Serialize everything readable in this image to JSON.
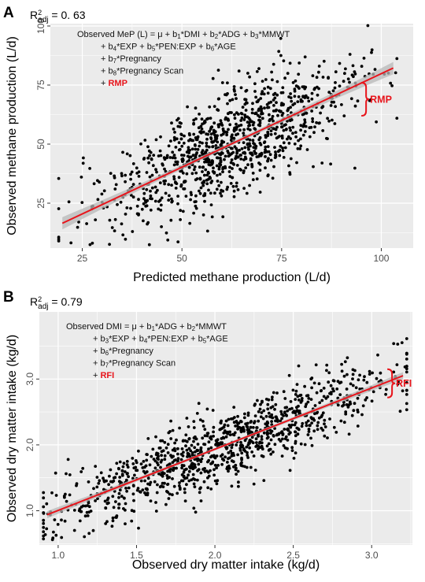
{
  "chart_data": [
    {
      "panel_id": "A",
      "type": "scatter",
      "xlabel": "Predicted methane production (L/d)",
      "ylabel": "Observed methane production (L/d)",
      "xlim": [
        17,
        108
      ],
      "ylim": [
        6,
        101
      ],
      "xticks": [
        25,
        50,
        75,
        100
      ],
      "yticks": [
        25,
        50,
        75,
        100
      ],
      "r2_base": "R",
      "r2_sub": "adj",
      "r2_value": " = 0. 63",
      "equation_lines": [
        [
          {
            "t": "Observed MeP (L) = μ + b"
          },
          {
            "t": "1",
            "sub": true
          },
          {
            "t": "*DMI + b"
          },
          {
            "t": "2",
            "sub": true
          },
          {
            "t": "*ADG + b"
          },
          {
            "t": "3",
            "sub": true
          },
          {
            "t": "*MMWT"
          }
        ],
        [
          {
            "t": "+ b"
          },
          {
            "t": "4",
            "sub": true
          },
          {
            "t": "*EXP + b"
          },
          {
            "t": "5",
            "sub": true
          },
          {
            "t": "*PEN:EXP + b"
          },
          {
            "t": "6",
            "sub": true
          },
          {
            "t": "*AGE"
          }
        ],
        [
          {
            "t": "+ b"
          },
          {
            "t": "7",
            "sub": true
          },
          {
            "t": "*Pregnancy"
          }
        ],
        [
          {
            "t": "+ b"
          },
          {
            "t": "8",
            "sub": true
          },
          {
            "t": "*Pregnancy Scan"
          }
        ],
        [
          {
            "t": "+ "
          },
          {
            "t": "RMP",
            "red": true
          }
        ]
      ],
      "residual_label": "RMP",
      "brace_x": 95,
      "brace_y": [
        62,
        76
      ],
      "fit_line": {
        "x": [
          20,
          103
        ],
        "y": [
          16.5,
          82.2
        ]
      },
      "ci_halfwidth": {
        "ends": 2.6,
        "center": 0.8
      },
      "n_points": 1050,
      "x_center": 61,
      "x_spread": 16,
      "y_residual_sd": 11.5,
      "seed": 12345,
      "colors": {
        "points": "#000000",
        "line": "#e8141b",
        "band": "#b8b8b8",
        "panel": "#ebebeb",
        "grid": "#ffffff"
      }
    },
    {
      "panel_id": "B",
      "type": "scatter",
      "xlabel": "Observed dry matter intake (kg/d)",
      "ylabel": "Observed dry matter intake (kg/d)",
      "xlim": [
        0.88,
        3.26
      ],
      "ylim": [
        0.48,
        4.02
      ],
      "xticks": [
        1.0,
        1.5,
        2.0,
        2.5,
        3.0
      ],
      "yticks": [
        1.0,
        2.0,
        3.0
      ],
      "r2_base": "R",
      "r2_sub": "adj",
      "r2_value": " = 0.79",
      "equation_lines": [
        [
          {
            "t": "Observed DMI  = μ + b"
          },
          {
            "t": "1",
            "sub": true
          },
          {
            "t": "*ADG + b"
          },
          {
            "t": "2",
            "sub": true
          },
          {
            "t": "*MMWT"
          }
        ],
        [
          {
            "t": "+ b"
          },
          {
            "t": "3",
            "sub": true
          },
          {
            "t": "*EXP + b"
          },
          {
            "t": "4",
            "sub": true
          },
          {
            "t": "*PEN:EXP + b"
          },
          {
            "t": "5",
            "sub": true
          },
          {
            "t": "*AGE"
          }
        ],
        [
          {
            "t": "+ b"
          },
          {
            "t": "6",
            "sub": true
          },
          {
            "t": "*Pregnancy"
          }
        ],
        [
          {
            "t": "+ b"
          },
          {
            "t": "7",
            "sub": true
          },
          {
            "t": "*Pregnancy Scan"
          }
        ],
        [
          {
            "t": "+ "
          },
          {
            "t": "RFI",
            "red": true
          }
        ]
      ],
      "residual_label": "RFI",
      "brace_x": 3.1,
      "brace_y": [
        2.72,
        3.15
      ],
      "fit_line": {
        "x": [
          0.93,
          3.2
        ],
        "y": [
          0.94,
          3.05
        ]
      },
      "ci_halfwidth": {
        "ends": 0.055,
        "center": 0.02
      },
      "n_points": 1050,
      "x_center": 2.05,
      "x_spread": 0.55,
      "y_residual_sd": 0.27,
      "seed": 777,
      "colors": {
        "points": "#000000",
        "line": "#e8141b",
        "band": "#b8b8b8",
        "panel": "#ebebeb",
        "grid": "#ffffff"
      }
    }
  ]
}
